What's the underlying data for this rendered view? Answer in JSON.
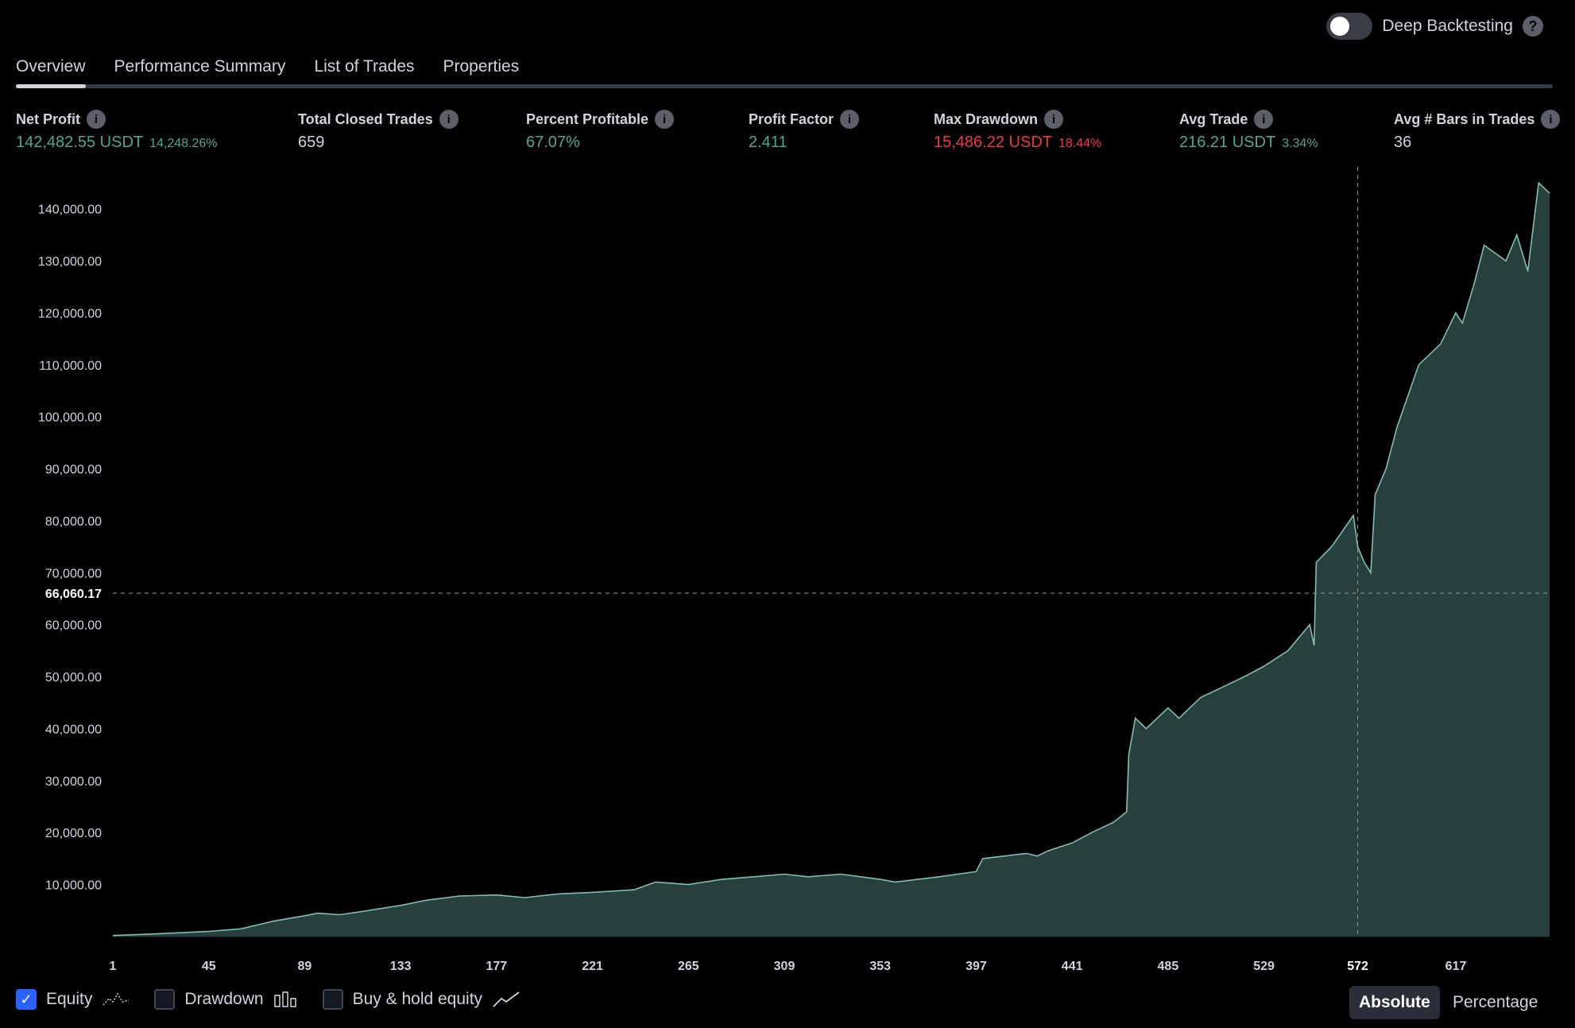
{
  "toolbar": {
    "deep_backtesting_label": "Deep Backtesting",
    "deep_backtesting_on": false,
    "help_glyph": "?"
  },
  "tabs": [
    {
      "label": "Overview",
      "active": true
    },
    {
      "label": "Performance Summary",
      "active": false
    },
    {
      "label": "List of Trades",
      "active": false
    },
    {
      "label": "Properties",
      "active": false
    }
  ],
  "stats": {
    "net_profit": {
      "label": "Net Profit",
      "value": "142,482.55 USDT",
      "sub": "14,248.26%"
    },
    "total_closed_trades": {
      "label": "Total Closed Trades",
      "value": "659"
    },
    "percent_profitable": {
      "label": "Percent Profitable",
      "value": "67.07%"
    },
    "profit_factor": {
      "label": "Profit Factor",
      "value": "2.411"
    },
    "max_drawdown": {
      "label": "Max Drawdown",
      "value": "15,486.22 USDT",
      "sub": "18.44%"
    },
    "avg_trade": {
      "label": "Avg Trade",
      "value": "216.21 USDT",
      "sub": "3.34%"
    },
    "avg_bars": {
      "label": "Avg # Bars in Trades",
      "value": "36"
    }
  },
  "colors": {
    "green": "#4fa88d",
    "red": "#f23645",
    "line": "#7fbfb0",
    "fill": "#2e4a48",
    "accent": "#2962ff"
  },
  "legend": {
    "equity": {
      "label": "Equity",
      "checked": true
    },
    "drawdown": {
      "label": "Drawdown",
      "checked": false
    },
    "buy_hold": {
      "label": "Buy & hold equity",
      "checked": false
    }
  },
  "mode": {
    "absolute": "Absolute",
    "percentage": "Percentage",
    "selected": "Absolute"
  },
  "chart_data": {
    "type": "area",
    "x_ticks": [
      1,
      45,
      89,
      133,
      177,
      221,
      265,
      309,
      353,
      397,
      441,
      485,
      529,
      572,
      617
    ],
    "y_ticks": [
      "10,000.00",
      "20,000.00",
      "30,000.00",
      "40,000.00",
      "50,000.00",
      "60,000.00",
      "70,000.00",
      "80,000.00",
      "90,000.00",
      "100,000.00",
      "110,000.00",
      "120,000.00",
      "130,000.00",
      "140,000.00"
    ],
    "y_tick_values": [
      10000,
      20000,
      30000,
      40000,
      50000,
      60000,
      70000,
      80000,
      90000,
      100000,
      110000,
      120000,
      130000,
      140000
    ],
    "xlim": [
      1,
      660
    ],
    "ylim": [
      0,
      145000
    ],
    "crosshair": {
      "x": 572,
      "y": 66060.17,
      "x_label": "572",
      "y_label": "66,060.17"
    },
    "series": [
      {
        "x": [
          1,
          20,
          45,
          60,
          75,
          89,
          95,
          105,
          115,
          133,
          145,
          160,
          177,
          190,
          205,
          221,
          240,
          250,
          265,
          280,
          295,
          309,
          320,
          335,
          353,
          360,
          380,
          397,
          400,
          410,
          420,
          425,
          430,
          441,
          450,
          460,
          466,
          467,
          470,
          475,
          485,
          490,
          500,
          510,
          520,
          529,
          540,
          550,
          552,
          553,
          560,
          565,
          570,
          572,
          575,
          578,
          580,
          585,
          590,
          600,
          610,
          617,
          620,
          625,
          630,
          640,
          645,
          650,
          655,
          660
        ],
        "y": [
          200,
          500,
          1000,
          1500,
          3000,
          4000,
          4500,
          4200,
          4800,
          6000,
          7000,
          7800,
          8000,
          7500,
          8200,
          8500,
          9000,
          10500,
          10000,
          11000,
          11500,
          12000,
          11500,
          12000,
          11000,
          10500,
          11500,
          12500,
          15000,
          15500,
          16000,
          15500,
          16500,
          18000,
          20000,
          22000,
          24000,
          35000,
          42000,
          40000,
          44000,
          42000,
          46000,
          48000,
          50000,
          52000,
          55000,
          60000,
          56000,
          72000,
          75000,
          78000,
          81000,
          75000,
          72000,
          70000,
          85000,
          90000,
          98000,
          110000,
          114000,
          120000,
          118000,
          125000,
          133000,
          130000,
          135000,
          128000,
          145000,
          143000
        ]
      }
    ]
  }
}
